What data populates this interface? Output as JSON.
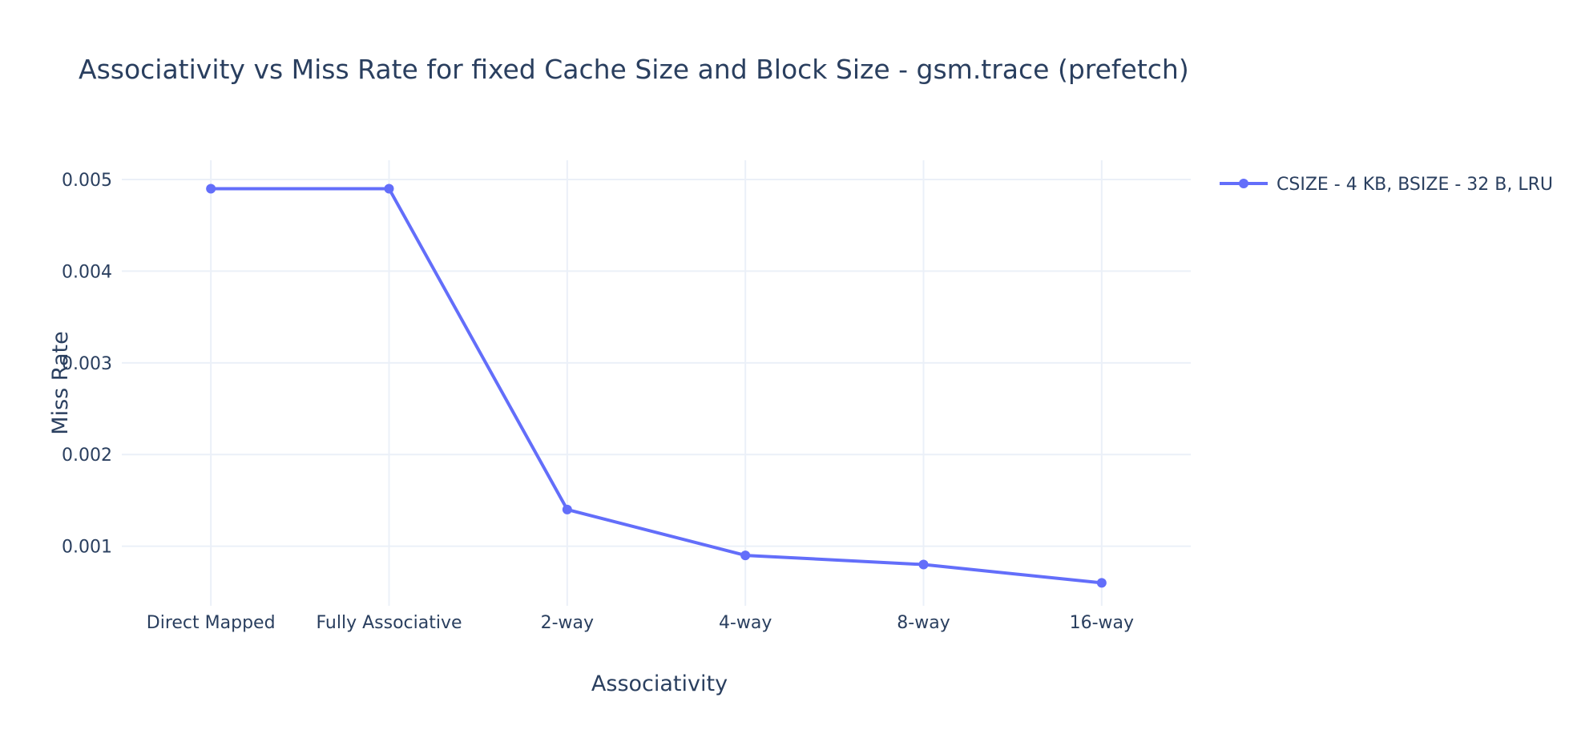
{
  "chart_data": {
    "type": "line",
    "title": "Associativity vs Miss Rate for fixed Cache Size and Block Size - gsm.trace (prefetch)",
    "xlabel": "Associativity",
    "ylabel": "Miss Rate",
    "categories": [
      "Direct Mapped",
      "Fully Associative",
      "2-way",
      "4-way",
      "8-way",
      "16-way"
    ],
    "series": [
      {
        "name": "CSIZE - 4 KB, BSIZE - 32 B, LRU",
        "values": [
          0.0049,
          0.0049,
          0.0014,
          0.0009,
          0.0008,
          0.0006
        ],
        "color": "#636efa"
      }
    ],
    "yticks": [
      "0.001",
      "0.002",
      "0.003",
      "0.004",
      "0.005"
    ],
    "ylim": [
      0.00035,
      0.00521
    ],
    "grid": true,
    "legend_position": "top-right"
  }
}
